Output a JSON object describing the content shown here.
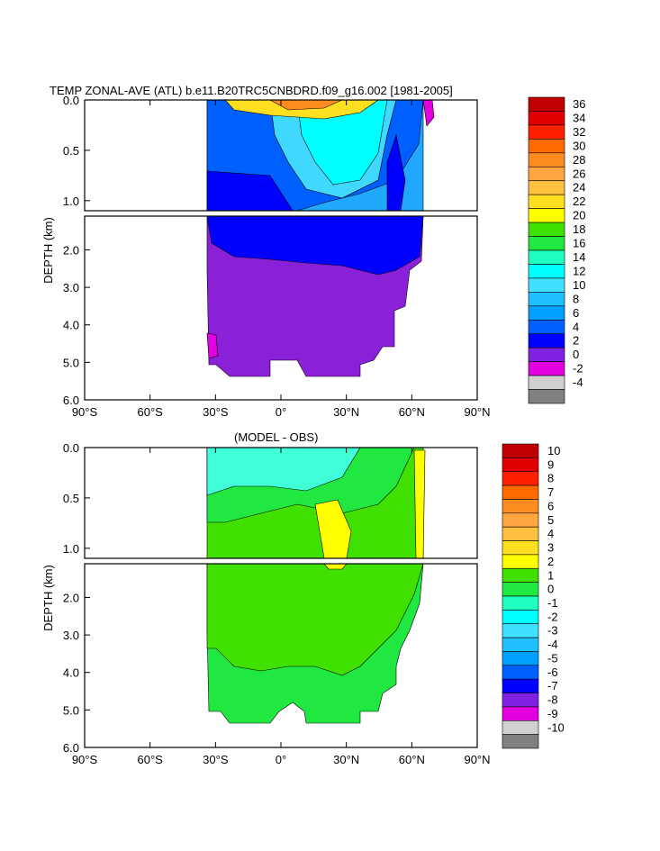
{
  "chart_data": [
    {
      "type": "heatmap",
      "title": "TEMP ZONAL-AVE (ATL) b.e11.B20TRC5CNBDRD.f09_g16.002 [1981-2005]",
      "ylabel": "DEPTH (km)",
      "xlabel": "",
      "xlim": [
        -90,
        90
      ],
      "x_ticks": [
        "90°S",
        "60°S",
        "30°S",
        "0°",
        "30°N",
        "60°N",
        "90°N"
      ],
      "y_ticks_upper": [
        "0.0",
        "0.5",
        "1.0"
      ],
      "y_ticks_lower": [
        "2.0",
        "3.0",
        "4.0",
        "5.0",
        "6.0"
      ],
      "ylim_upper": [
        0.0,
        1.1
      ],
      "ylim_lower": [
        1.1,
        6.0
      ],
      "colorbar": {
        "labels": [
          "36",
          "34",
          "32",
          "30",
          "28",
          "26",
          "24",
          "22",
          "20",
          "18",
          "16",
          "14",
          "12",
          "10",
          "8",
          "6",
          "4",
          "2",
          "0",
          "-2",
          "-4"
        ],
        "colors": [
          "#c00000",
          "#e00000",
          "#ff2000",
          "#ff6a00",
          "#ff8c20",
          "#ffa640",
          "#ffc040",
          "#ffe020",
          "#ffff00",
          "#40e000",
          "#20e840",
          "#20ffc0",
          "#00ffff",
          "#40e0ff",
          "#20c0ff",
          "#00a0ff",
          "#0060ff",
          "#0000ff",
          "#8020e0",
          "#e000e0",
          "#d0d0d0",
          "#808080"
        ]
      },
      "layers": {
        "bottom": "#8a20d8",
        "deep_blue": "#0000ff",
        "mid_blue": "#0060ff",
        "light_blue": "#20a8ff",
        "sky": "#40d8ff",
        "cyan": "#00ffff",
        "warm": "#ffe020",
        "hot": "#ff8c20",
        "deep_pink": "#e000e0"
      }
    },
    {
      "type": "heatmap",
      "title": "(MODEL - OBS)",
      "ylabel": "DEPTH (km)",
      "xlabel": "",
      "xlim": [
        -90,
        90
      ],
      "x_ticks": [
        "90°S",
        "60°S",
        "30°S",
        "0°",
        "30°N",
        "60°N",
        "90°N"
      ],
      "y_ticks_upper": [
        "0.0",
        "0.5",
        "1.0"
      ],
      "y_ticks_lower": [
        "2.0",
        "3.0",
        "4.0",
        "5.0",
        "6.0"
      ],
      "ylim_upper": [
        0.0,
        1.1
      ],
      "ylim_lower": [
        1.1,
        6.0
      ],
      "colorbar": {
        "labels": [
          "10",
          "9",
          "8",
          "7",
          "6",
          "5",
          "4",
          "3",
          "2",
          "1",
          "0",
          "-1",
          "-2",
          "-3",
          "-4",
          "-5",
          "-6",
          "-7",
          "-8",
          "-9",
          "-10"
        ],
        "colors": [
          "#c00000",
          "#e00000",
          "#ff2000",
          "#ff6a00",
          "#ff8c20",
          "#ffa640",
          "#ffc040",
          "#ffe020",
          "#ffff00",
          "#40e000",
          "#20e840",
          "#20ffc0",
          "#00ffff",
          "#40e0ff",
          "#20c0ff",
          "#00a0ff",
          "#0060ff",
          "#0000ff",
          "#8020e0",
          "#e000e0",
          "#d0d0d0",
          "#808080"
        ]
      },
      "layers": {
        "base": "#40e000",
        "bright": "#66ff00",
        "neutral": "#20e840",
        "cyan": "#40ffd8",
        "yellow": "#ffff00"
      }
    }
  ]
}
